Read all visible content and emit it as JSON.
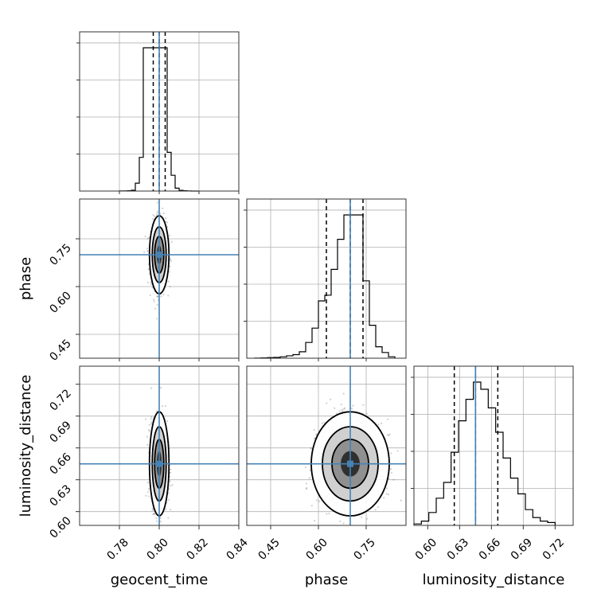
{
  "chart_data": {
    "type": "corner",
    "parameters": [
      "geocent_time",
      "phase",
      "luminosity_distance"
    ],
    "axis_labels": {
      "x": [
        "geocent_time",
        "phase",
        "luminosity_distance"
      ],
      "y": [
        "phase",
        "luminosity_distance"
      ]
    },
    "ranges": {
      "geocent_time": [
        0.76,
        0.84
      ],
      "phase": [
        0.375,
        0.875
      ],
      "luminosity_distance": [
        0.587,
        0.737
      ]
    },
    "ticks": {
      "geocent_time": [
        0.78,
        0.8,
        0.82,
        0.84
      ],
      "phase_x": [
        0.45,
        0.6,
        0.75
      ],
      "phase_y": [
        0.45,
        0.6,
        0.75
      ],
      "luminosity_distance_x": [
        0.6,
        0.63,
        0.66,
        0.69,
        0.72
      ],
      "luminosity_distance_y": [
        0.6,
        0.63,
        0.66,
        0.69,
        0.72
      ]
    },
    "truths": {
      "geocent_time": 0.8,
      "phase": 0.7,
      "luminosity_distance": 0.645
    },
    "quantiles": {
      "geocent_time": [
        0.797,
        0.8,
        0.803
      ],
      "phase": [
        0.625,
        0.7,
        0.74
      ],
      "luminosity_distance": [
        0.625,
        0.645,
        0.666
      ]
    },
    "histograms": {
      "geocent_time": {
        "edges": [
          0.78,
          0.782,
          0.784,
          0.786,
          0.788,
          0.79,
          0.792,
          0.794,
          0.796,
          0.798,
          0.8,
          0.802,
          0.804,
          0.806,
          0.808,
          0.81,
          0.812,
          0.814,
          0.816,
          0.818,
          0.82
        ],
        "counts": [
          1,
          1,
          2,
          6,
          55,
          235,
          1000,
          1000,
          1000,
          1000,
          1000,
          1000,
          270,
          110,
          20,
          5,
          2,
          1,
          0,
          0
        ]
      },
      "phase": {
        "edges": [
          0.4,
          0.42,
          0.44,
          0.46,
          0.48,
          0.5,
          0.52,
          0.54,
          0.56,
          0.58,
          0.6,
          0.62,
          0.64,
          0.66,
          0.68,
          0.7,
          0.72,
          0.74,
          0.76,
          0.78,
          0.8,
          0.82,
          0.84
        ],
        "counts": [
          1,
          2,
          4,
          6,
          10,
          17,
          25,
          45,
          110,
          210,
          400,
          440,
          620,
          830,
          1000,
          1000,
          1000,
          540,
          230,
          80,
          40,
          10
        ]
      },
      "luminosity_distance": {
        "edges": [
          0.587,
          0.594,
          0.601,
          0.608,
          0.615,
          0.622,
          0.629,
          0.636,
          0.643,
          0.65,
          0.657,
          0.664,
          0.671,
          0.678,
          0.685,
          0.692,
          0.699,
          0.706,
          0.713,
          0.72
        ],
        "counts": [
          10,
          30,
          90,
          190,
          300,
          510,
          730,
          880,
          1000,
          950,
          820,
          650,
          470,
          330,
          220,
          110,
          55,
          30,
          20
        ]
      }
    },
    "scatter_pairs": [
      {
        "x": "geocent_time",
        "y": "phase",
        "center": [
          0.8,
          0.7
        ],
        "sd": [
          0.002,
          0.05
        ]
      },
      {
        "x": "geocent_time",
        "y": "luminosity_distance",
        "center": [
          0.8,
          0.645
        ],
        "sd": [
          0.002,
          0.02
        ]
      },
      {
        "x": "phase",
        "y": "luminosity_distance",
        "center": [
          0.7,
          0.645
        ],
        "sd": [
          0.05,
          0.02
        ]
      }
    ]
  }
}
